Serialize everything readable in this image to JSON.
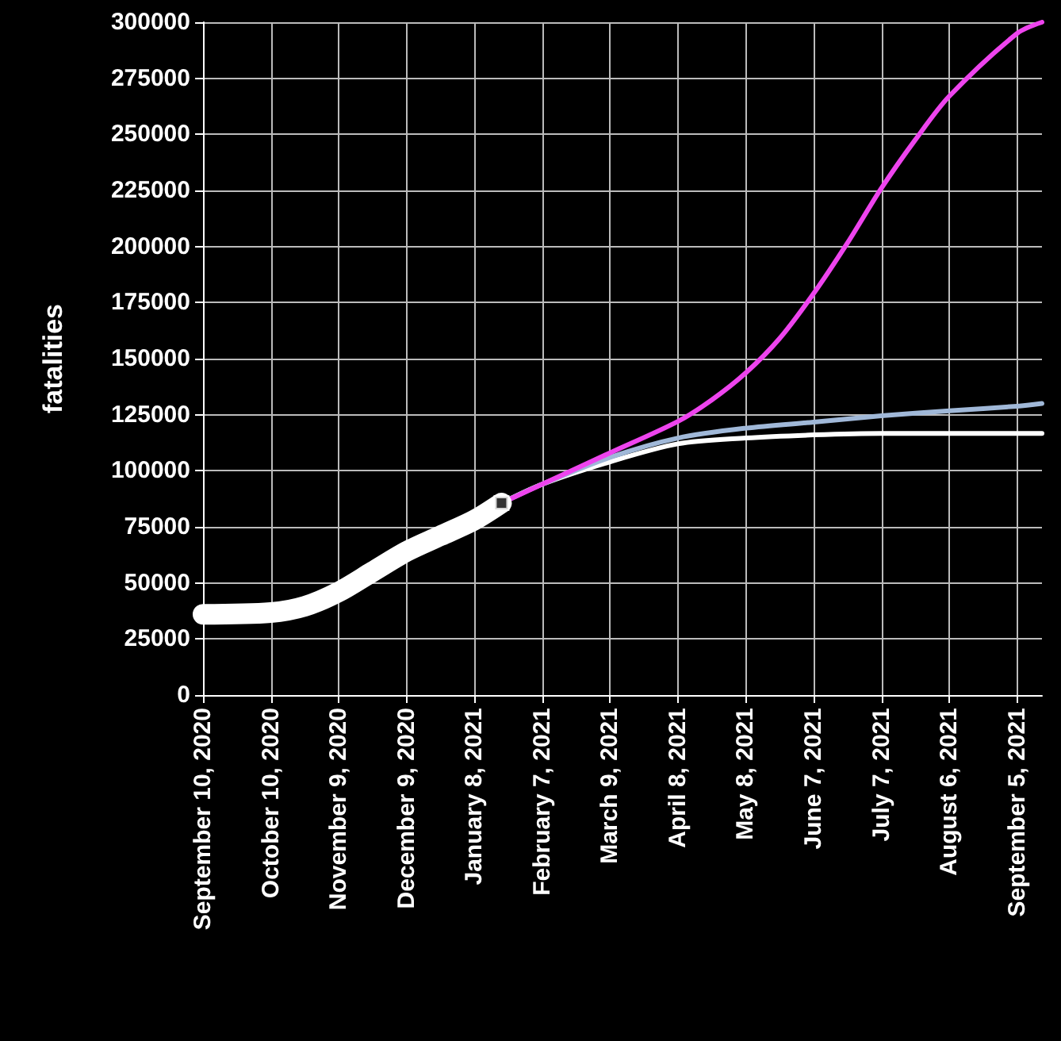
{
  "chart_data": {
    "type": "line",
    "ylabel": "fatalities",
    "xlim": [
      "2020-09-10",
      "2021-09-16"
    ],
    "xticks": [
      {
        "value": "2020-09-10",
        "label": "September 10, 2020"
      },
      {
        "value": "2020-10-10",
        "label": "October 10, 2020"
      },
      {
        "value": "2020-11-09",
        "label": "November 9, 2020"
      },
      {
        "value": "2020-12-09",
        "label": "December 9, 2020"
      },
      {
        "value": "2021-01-08",
        "label": "January 8, 2021"
      },
      {
        "value": "2021-02-07",
        "label": "February 7, 2021"
      },
      {
        "value": "2021-03-09",
        "label": "March 9, 2021"
      },
      {
        "value": "2021-04-08",
        "label": "April 8, 2021"
      },
      {
        "value": "2021-05-08",
        "label": "May 8, 2021"
      },
      {
        "value": "2021-06-07",
        "label": "June 7, 2021"
      },
      {
        "value": "2021-07-07",
        "label": "July 7, 2021"
      },
      {
        "value": "2021-08-06",
        "label": "August 6, 2021"
      },
      {
        "value": "2021-09-05",
        "label": "September 5, 2021"
      }
    ],
    "ylim": [
      0,
      300000
    ],
    "yticks": [
      0,
      25000,
      50000,
      75000,
      100000,
      125000,
      150000,
      175000,
      200000,
      225000,
      250000,
      275000,
      300000
    ],
    "grid": true,
    "marker": "none",
    "series": [
      {
        "color": "#ffffff",
        "x": [
          "2020-09-10",
          "2020-10-10",
          "2020-10-25",
          "2020-11-09",
          "2020-11-24",
          "2020-12-09",
          "2020-12-24",
          "2021-01-08",
          "2021-01-20"
        ],
        "values": [
          36000,
          36800,
          39600,
          46000,
          55000,
          64000,
          71000,
          78000,
          85600
        ]
      },
      {
        "type": "scatter",
        "marker": "square",
        "color": "#ffffff",
        "x": [
          "2021-01-20"
        ],
        "values": [
          85600
        ]
      },
      {
        "color": "#ffffff",
        "x": [
          "2021-01-20",
          "2021-02-07",
          "2021-03-09",
          "2021-04-08",
          "2021-05-08",
          "2021-06-07",
          "2021-07-07",
          "2021-08-06",
          "2021-09-05",
          "2021-09-16"
        ],
        "values": [
          85600,
          94000,
          104000,
          112000,
          114600,
          116000,
          116700,
          116700,
          116700,
          116700
        ]
      },
      {
        "color": "#a0b8d8",
        "x": [
          "2021-01-20",
          "2021-02-07",
          "2021-03-09",
          "2021-04-08",
          "2021-05-08",
          "2021-06-07",
          "2021-07-07",
          "2021-08-06",
          "2021-09-05",
          "2021-09-16"
        ],
        "values": [
          85600,
          94000,
          106000,
          114600,
          119000,
          121700,
          124500,
          126700,
          128800,
          130000
        ]
      },
      {
        "color": "#ee44ee",
        "x": [
          "2021-01-20",
          "2021-02-07",
          "2021-03-09",
          "2021-04-08",
          "2021-04-23",
          "2021-05-08",
          "2021-05-23",
          "2021-06-07",
          "2021-06-22",
          "2021-07-07",
          "2021-07-22",
          "2021-08-06",
          "2021-09-05",
          "2021-09-16"
        ],
        "values": [
          85600,
          94000,
          108000,
          122000,
          131600,
          143600,
          159000,
          179000,
          201600,
          226000,
          247600,
          267000,
          295000,
          300000
        ]
      }
    ]
  }
}
